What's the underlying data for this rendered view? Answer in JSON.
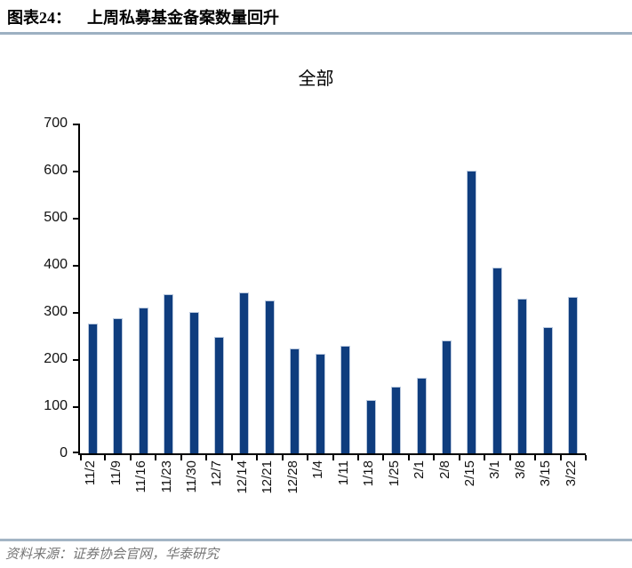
{
  "header": {
    "figure_label": "图表24：",
    "title": "上周私募基金备案数量回升"
  },
  "chart_data": {
    "type": "bar",
    "title": "全部",
    "categories": [
      "11/2",
      "11/9",
      "11/16",
      "11/23",
      "11/30",
      "12/7",
      "12/14",
      "12/21",
      "12/28",
      "1/4",
      "1/11",
      "1/18",
      "1/25",
      "2/1",
      "2/8",
      "2/15",
      "3/1",
      "3/8",
      "3/15",
      "3/22"
    ],
    "values": [
      275,
      287,
      310,
      337,
      300,
      247,
      342,
      325,
      222,
      211,
      229,
      114,
      141,
      160,
      240,
      600,
      394,
      328,
      268,
      333
    ],
    "xlabel": "",
    "ylabel": "",
    "ylim": [
      0,
      700
    ],
    "yticks": [
      0,
      100,
      200,
      300,
      400,
      500,
      600,
      700
    ],
    "grid": false,
    "legend_position": "none",
    "bar_color": "#0f3d7e",
    "bar_border_color": "#bac9de",
    "axis_color": "#000000"
  },
  "footer": {
    "source": "资料来源：证券协会官网，华泰研究"
  },
  "colors": {
    "header_rule": "#9db0c2",
    "footer_rule": "#a3b5c5",
    "footer_text": "#767676"
  }
}
